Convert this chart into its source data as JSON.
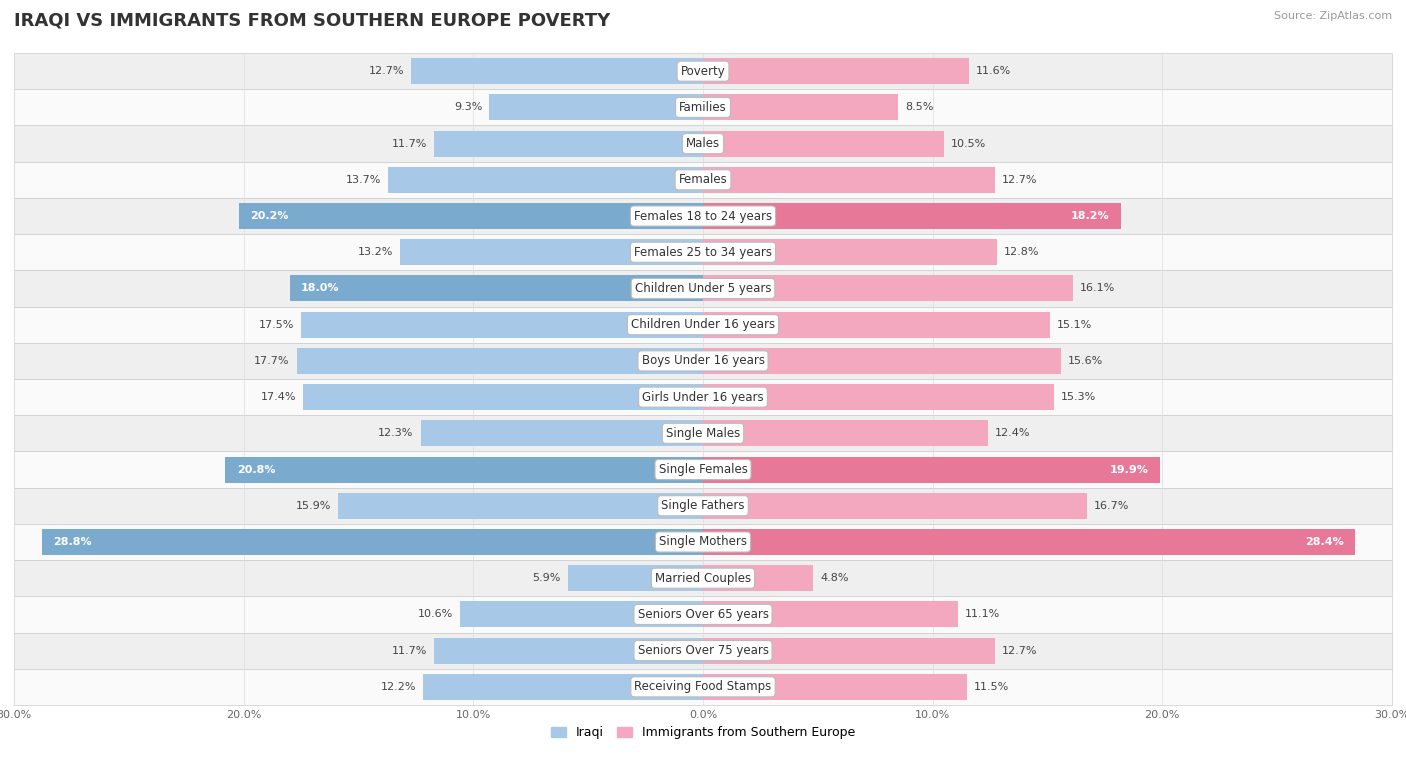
{
  "title": "IRAQI VS IMMIGRANTS FROM SOUTHERN EUROPE POVERTY",
  "source": "Source: ZipAtlas.com",
  "categories": [
    "Poverty",
    "Families",
    "Males",
    "Females",
    "Females 18 to 24 years",
    "Females 25 to 34 years",
    "Children Under 5 years",
    "Children Under 16 years",
    "Boys Under 16 years",
    "Girls Under 16 years",
    "Single Males",
    "Single Females",
    "Single Fathers",
    "Single Mothers",
    "Married Couples",
    "Seniors Over 65 years",
    "Seniors Over 75 years",
    "Receiving Food Stamps"
  ],
  "iraqi": [
    12.7,
    9.3,
    11.7,
    13.7,
    20.2,
    13.2,
    18.0,
    17.5,
    17.7,
    17.4,
    12.3,
    20.8,
    15.9,
    28.8,
    5.9,
    10.6,
    11.7,
    12.2
  ],
  "southern_europe": [
    11.6,
    8.5,
    10.5,
    12.7,
    18.2,
    12.8,
    16.1,
    15.1,
    15.6,
    15.3,
    12.4,
    19.9,
    16.7,
    28.4,
    4.8,
    11.1,
    12.7,
    11.5
  ],
  "iraqi_color_normal": "#a8c8e8",
  "iraqi_color_highlight": "#7aaace",
  "se_color_normal": "#f4a8c0",
  "se_color_highlight": "#e87898",
  "highlight_threshold": 18.0,
  "xlim": 30.0,
  "bar_height": 0.72,
  "row_bg_even": "#efefef",
  "row_bg_odd": "#fafafa",
  "label_fontsize": 8.5,
  "value_fontsize": 8.0,
  "title_fontsize": 13,
  "source_fontsize": 8
}
